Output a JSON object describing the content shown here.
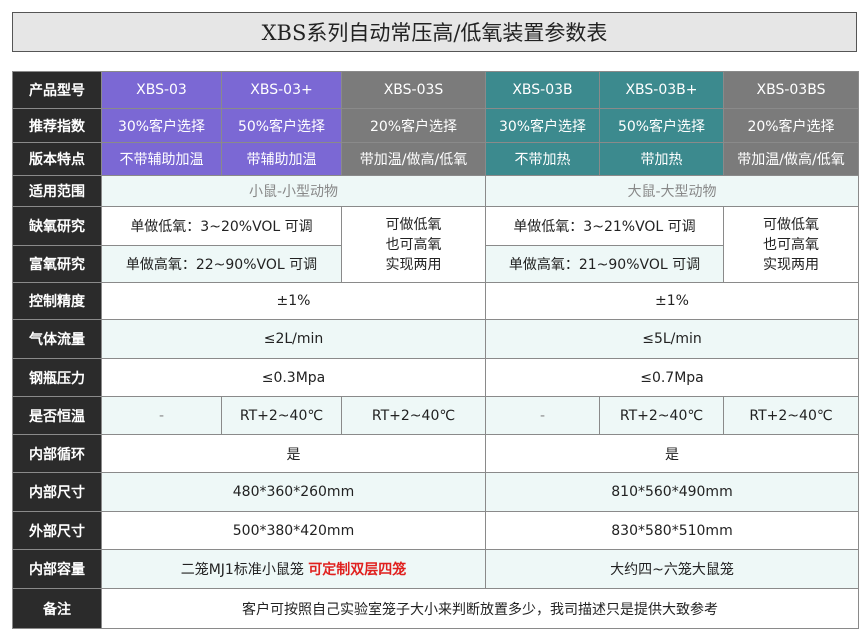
{
  "title": "XBS系列自动常压高/低氧装置参数表",
  "rows": {
    "model": {
      "label": "产品型号",
      "values": [
        "XBS-03",
        "XBS-03+",
        "XBS-03S",
        "XBS-03B",
        "XBS-03B+",
        "XBS-03BS"
      ]
    },
    "recommend": {
      "label": "推荐指数",
      "values": [
        "30%客户选择",
        "50%客户选择",
        "20%客户选择",
        "30%客户选择",
        "50%客户选择",
        "20%客户选择"
      ]
    },
    "features": {
      "label": "版本特点",
      "values": [
        "不带辅助加温",
        "带辅助加温",
        "带加温/做高/低氧",
        "不带加热",
        "带加热",
        "带加温/做高/低氧"
      ]
    },
    "scope": {
      "label": "适用范围",
      "small": "小鼠-小型动物",
      "large": "大鼠-大型动物"
    },
    "hypoxia": {
      "label": "缺氧研究",
      "small": "单做低氧：3~20%VOL   可调",
      "large": "单做低氧：3~21%VOL  可调"
    },
    "both": {
      "small": "可做低氧\n也可高氧\n实现两用",
      "large": "可做低氧\n也可高氧\n实现两用"
    },
    "hyperoxia": {
      "label": "富氧研究",
      "small": "单做高氧：22~90%VOL  可调",
      "large": "单做高氧：21~90%VOL 可调"
    },
    "precision": {
      "label": "控制精度",
      "small": "±1%",
      "large": "±1%"
    },
    "flow": {
      "label": "气体流量",
      "small": "≤2L/min",
      "large": "≤5L/min"
    },
    "pressure": {
      "label": "钢瓶压力",
      "small": "≤0.3Mpa",
      "large": "≤0.7Mpa"
    },
    "thermostat": {
      "label": "是否恒温",
      "values": [
        "-",
        "RT+2~40℃",
        "RT+2~40℃",
        "-",
        "RT+2~40℃",
        "RT+2~40℃"
      ]
    },
    "circulation": {
      "label": "内部循环",
      "small": "是",
      "large": "是"
    },
    "inner_size": {
      "label": "内部尺寸",
      "small": "480*360*260mm",
      "large": "810*560*490mm"
    },
    "outer_size": {
      "label": "外部尺寸",
      "small": "500*380*420mm",
      "large": "830*580*510mm"
    },
    "capacity": {
      "label": "内部容量",
      "small": "二笼MJ1标准小鼠笼",
      "small_highlight": "可定制双层四笼",
      "large": "大约四~六笼大鼠笼"
    },
    "note": {
      "label": "备注",
      "value": "客户可按照自己实验室笼子大小来判断放置多少，我司描述只是提供大致参考"
    }
  },
  "colors": {
    "purple": "#7b68d4",
    "gray": "#7b7b7b",
    "teal": "#3c8a8e",
    "header_dark": "#2b2b2b",
    "light_row": "#eef8f7",
    "highlight": "#e0201e"
  }
}
